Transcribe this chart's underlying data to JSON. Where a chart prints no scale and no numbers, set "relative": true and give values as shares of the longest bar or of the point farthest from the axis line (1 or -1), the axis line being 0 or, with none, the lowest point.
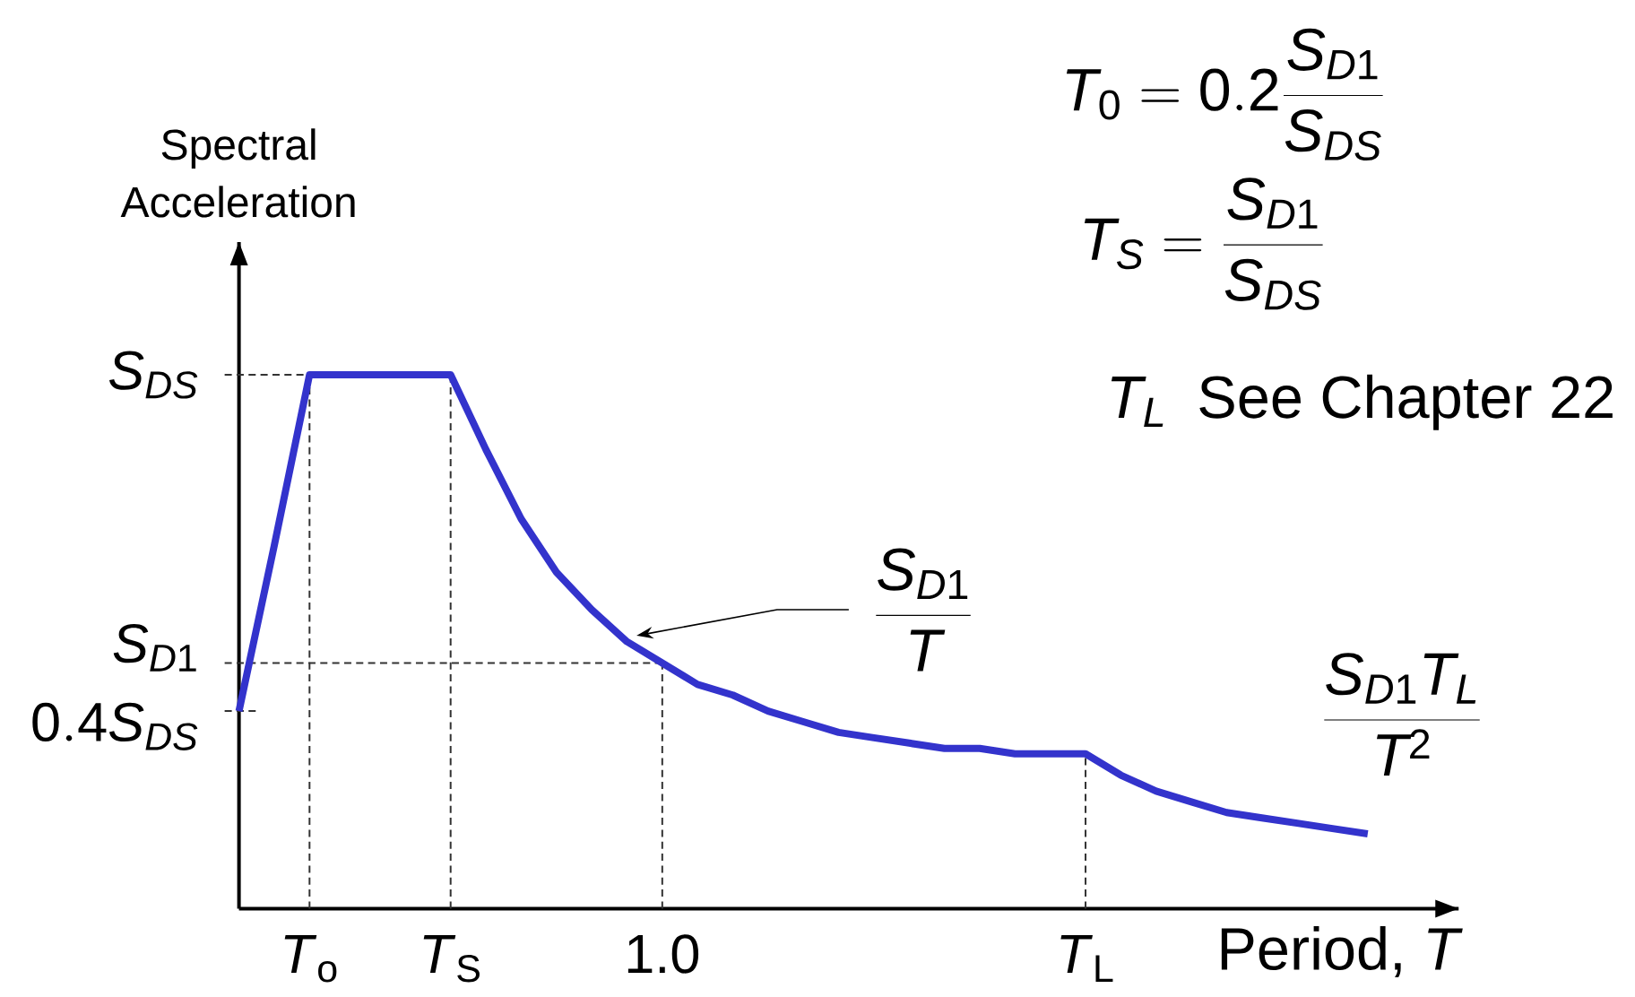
{
  "chart_data": {
    "type": "line",
    "xlabel": "Period, *T*",
    "ylabel": "Spectral Acceleration",
    "relative": true,
    "categories": [
      null,
      null,
      "*T*$_{o}$",
      null,
      null,
      null,
      "*T*$_{S}$",
      null,
      null,
      null,
      null,
      null,
      "1.0",
      null,
      null,
      null,
      null,
      null,
      null,
      null,
      null,
      null,
      null,
      null,
      "*T*$_{L}$",
      null,
      null,
      null,
      null,
      null,
      null,
      null,
      null
    ],
    "values": [
      0.37,
      0.68,
      1,
      1,
      1,
      1,
      1,
      0.86,
      0.73,
      0.63,
      0.56,
      0.5,
      0.46,
      0.42,
      0.4,
      0.37,
      0.35,
      0.33,
      0.32,
      0.31,
      0.3,
      0.3,
      0.29,
      0.29,
      0.29,
      0.25,
      0.22,
      0.2,
      0.18,
      0.17,
      0.16,
      0.15,
      0.14
    ],
    "color": "#3333cc",
    "marker": "none",
    "line_style": "solid",
    "ref_lines": [
      {
        "axis": "y",
        "value": 1,
        "label": "S_{DS}",
        "line_style": "dashed"
      },
      {
        "axis": "y",
        "value": 0.46,
        "label": "S_{D1}",
        "line_style": "dashed"
      },
      {
        "axis": "y",
        "value": 0.37,
        "label": "0.4S_{DS}",
        "line_style": "dashed"
      },
      {
        "axis": "x",
        "value": "*T*$_{o}$",
        "line_style": "dashed"
      },
      {
        "axis": "x",
        "value": "*T*$_{S}$",
        "line_style": "dashed"
      },
      {
        "axis": "x",
        "value": "1.0",
        "line_style": "dashed"
      },
      {
        "axis": "x",
        "value": "*T*$_{L}$",
        "line_style": "dashed"
      }
    ],
    "annotations": [
      "\\frac{S_{D1}}{T}",
      "\\frac{S_{D1}T_L}{T^2}",
      "T_0 = 0.2\\frac{S_{D1}}{S_{DS}}",
      "T_S = \\frac{S_{D1}}{S_{DS}}",
      "T_L\\enspace\\mbox{See Chapter 22}"
    ]
  }
}
